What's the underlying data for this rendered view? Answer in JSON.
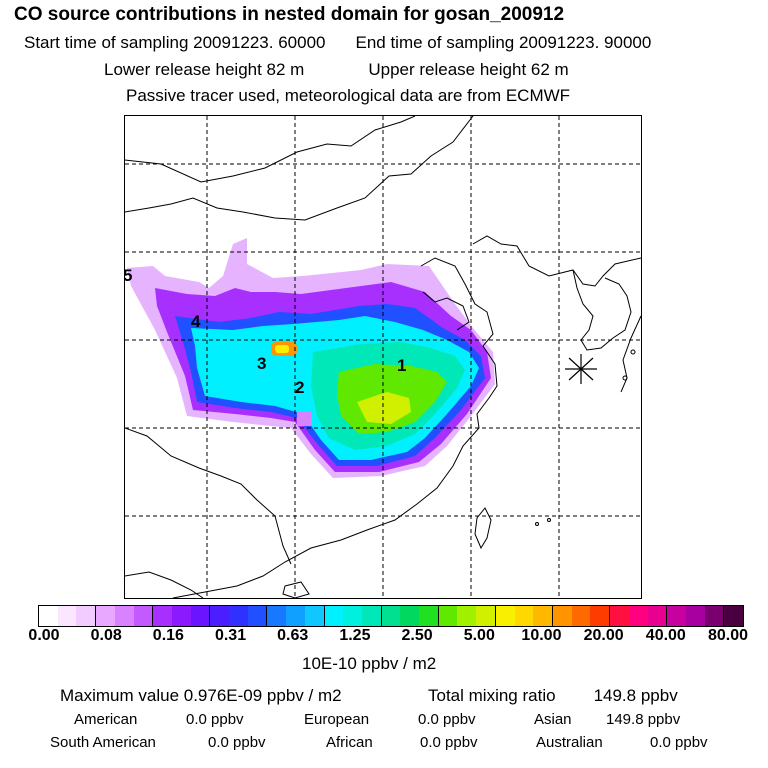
{
  "title": "CO  source contributions in nested domain for gosan_200912",
  "header": {
    "start_label": "Start time of sampling 20091223. 60000",
    "end_label": "End time of sampling 20091223. 90000",
    "lower_label": "Lower release height   82 m",
    "upper_label": "Upper release height   62 m",
    "tracer_note": "Passive tracer used, meteorological data are from ECMWF"
  },
  "map": {
    "region_labels": [
      "1",
      "2",
      "3",
      "4",
      "5"
    ],
    "receptor": "gosan"
  },
  "colorbar": {
    "ticks": [
      "0.00",
      "0.08",
      "0.16",
      "0.31",
      "0.63",
      "1.25",
      "2.50",
      "5.00",
      "10.00",
      "20.00",
      "40.00",
      "80.00"
    ],
    "colors": [
      "#ffffff",
      "#fbe6ff",
      "#f3ccff",
      "#e8a8ff",
      "#d982ff",
      "#c25aff",
      "#a830ff",
      "#8c1aff",
      "#6a14ff",
      "#4a1eff",
      "#3030ff",
      "#2050ff",
      "#1878ff",
      "#10a0ff",
      "#10c8ff",
      "#00f0ff",
      "#00f0e0",
      "#00e8b8",
      "#00e090",
      "#00d860",
      "#20e020",
      "#60e800",
      "#a0f000",
      "#d0f000",
      "#f8f000",
      "#ffd800",
      "#ffb800",
      "#ff9400",
      "#ff6a00",
      "#ff3c00",
      "#ff1040",
      "#ff0080",
      "#e80090",
      "#c800a0",
      "#a800a0",
      "#7a0070",
      "#4a0040"
    ],
    "units": "10E-10 ppbv / m2"
  },
  "summary": {
    "max_label": "Maximum value  0.976E-09 ppbv / m2",
    "total_label": "Total mixing ratio",
    "total_value": "149.8 ppbv",
    "sources": [
      {
        "name": "American",
        "value": "0.0 ppbv"
      },
      {
        "name": "European",
        "value": "0.0 ppbv"
      },
      {
        "name": "Asian",
        "value": "149.8 ppbv"
      },
      {
        "name": "South American",
        "value": "0.0 ppbv"
      },
      {
        "name": "African",
        "value": "0.0 ppbv"
      },
      {
        "name": "Australian",
        "value": "0.0 ppbv"
      }
    ]
  }
}
